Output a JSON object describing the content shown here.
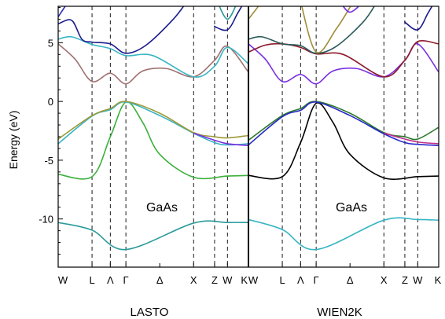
{
  "chart_data": {
    "type": "line",
    "ylabel": "Energy (eV)",
    "ylim": [
      -14.1,
      8.1
    ],
    "yticks": [
      5,
      0,
      -5,
      -10
    ],
    "kpoints": [
      "W",
      "L",
      "Λ",
      "Γ",
      "Δ",
      "X",
      "Z",
      "W",
      "K"
    ],
    "colors": {
      "black": "#000000",
      "teal": "#2a9a9a",
      "cyan": "#38b4c4",
      "green": "#3bb03b",
      "olive": "#9c9a38",
      "purple": "#7a2ee0",
      "mauve": "#a07070",
      "navy": "#1a1a8c",
      "blue": "#2828c8",
      "darkgreen": "#2a7a2a",
      "maroon": "#8c1a2a",
      "darkslate": "#2a5a5a",
      "gold": "#a08c3a",
      "magenta": "#c0308c"
    },
    "panels": [
      {
        "title": "LASTO",
        "material": "GaAs",
        "x_range": [
          0,
          8
        ],
        "dividers": [
          1.0,
          1.54,
          2.0,
          4.0,
          4.62,
          5.0
        ],
        "tick_positions": [
          0,
          1.0,
          1.54,
          2.0,
          3.0,
          4.0,
          4.62,
          5.0,
          5.62
        ],
        "series": [
          {
            "color": "teal",
            "points": [
              [
                0,
                -10.3
              ],
              [
                1.0,
                -10.95
              ],
              [
                2.0,
                -12.6
              ],
              [
                4.0,
                -10.35
              ],
              [
                5.0,
                -10.3
              ],
              [
                5.62,
                -10.3
              ]
            ]
          },
          {
            "color": "green",
            "points": [
              [
                0,
                -6.2
              ],
              [
                1.0,
                -6.4
              ],
              [
                1.54,
                -3.0
              ],
              [
                2.0,
                -0.05
              ],
              [
                2.5,
                -1.8
              ],
              [
                3.0,
                -4.5
              ],
              [
                4.0,
                -6.45
              ],
              [
                5.0,
                -6.35
              ],
              [
                5.62,
                -6.3
              ]
            ]
          },
          {
            "color": "cyan",
            "points": [
              [
                0,
                -3.6
              ],
              [
                1.0,
                -1.25
              ],
              [
                1.54,
                -0.7
              ],
              [
                2.0,
                -0.05
              ],
              [
                3.0,
                -1.2
              ],
              [
                4.0,
                -2.7
              ],
              [
                4.62,
                -3.5
              ],
              [
                5.0,
                -3.7
              ],
              [
                5.62,
                -3.6
              ]
            ]
          },
          {
            "color": "olive",
            "points": [
              [
                0,
                -3.2
              ],
              [
                1.0,
                -1.2
              ],
              [
                1.54,
                -0.6
              ],
              [
                2.0,
                0.0
              ],
              [
                3.0,
                -1.0
              ],
              [
                4.0,
                -2.65
              ],
              [
                4.62,
                -3.0
              ],
              [
                5.0,
                -3.1
              ],
              [
                5.62,
                -2.9
              ]
            ]
          },
          {
            "color": "purple",
            "points": [
              [
                4.0,
                -2.7
              ],
              [
                4.62,
                -3.3
              ],
              [
                5.0,
                -3.6
              ],
              [
                5.62,
                -3.75
              ]
            ]
          },
          {
            "color": "mauve",
            "points": [
              [
                0,
                4.9
              ],
              [
                0.5,
                3.6
              ],
              [
                1.0,
                1.7
              ],
              [
                1.54,
                2.4
              ],
              [
                2.0,
                1.5
              ],
              [
                2.5,
                2.6
              ],
              [
                3.2,
                2.8
              ],
              [
                4.0,
                2.1
              ],
              [
                4.62,
                3.5
              ],
              [
                5.0,
                4.7
              ],
              [
                5.62,
                2.5
              ]
            ]
          },
          {
            "color": "cyan",
            "points": [
              [
                0,
                5.3
              ],
              [
                0.4,
                5.5
              ],
              [
                1.0,
                4.85
              ],
              [
                1.54,
                4.5
              ],
              [
                2.0,
                3.9
              ],
              [
                2.8,
                3.9
              ],
              [
                4.0,
                2.1
              ],
              [
                4.62,
                3.0
              ],
              [
                5.0,
                4.6
              ],
              [
                5.62,
                3.2
              ]
            ]
          },
          {
            "color": "navy",
            "points": [
              [
                0,
                6.6
              ],
              [
                0.4,
                6.9
              ],
              [
                0.7,
                5.3
              ],
              [
                1.0,
                5.05
              ],
              [
                1.54,
                4.9
              ],
              [
                2.0,
                4.1
              ],
              [
                2.6,
                4.8
              ],
              [
                3.4,
                7.0
              ],
              [
                3.8,
                8.5
              ]
            ]
          },
          {
            "color": "blue",
            "points": [
              [
                0,
                7.2
              ],
              [
                0.3,
                8.5
              ]
            ]
          },
          {
            "color": "navy",
            "points": [
              [
                4.6,
                6.4
              ],
              [
                5.0,
                6.1
              ],
              [
                5.3,
                7.5
              ],
              [
                5.5,
                8.5
              ]
            ]
          },
          {
            "color": "teal",
            "points": [
              [
                4.7,
                8.5
              ],
              [
                5.0,
                7.0
              ],
              [
                5.3,
                8.5
              ]
            ]
          }
        ]
      },
      {
        "title": "WIEN2K",
        "material": "GaAs",
        "x_range": [
          0,
          8
        ],
        "dividers": [
          1.0,
          1.54,
          2.0,
          4.0,
          4.62,
          5.0
        ],
        "tick_positions": [
          0,
          1.0,
          1.54,
          2.0,
          3.0,
          4.0,
          4.62,
          5.0,
          5.62
        ],
        "series": [
          {
            "color": "cyan",
            "points": [
              [
                0,
                -10.05
              ],
              [
                1.0,
                -10.9
              ],
              [
                2.0,
                -12.6
              ],
              [
                4.0,
                -10.1
              ],
              [
                5.0,
                -10.05
              ],
              [
                5.62,
                -10.1
              ]
            ]
          },
          {
            "color": "black",
            "points": [
              [
                0,
                -6.3
              ],
              [
                1.0,
                -6.4
              ],
              [
                1.54,
                -3.5
              ],
              [
                2.0,
                -0.15
              ],
              [
                2.5,
                -1.8
              ],
              [
                3.0,
                -4.5
              ],
              [
                4.0,
                -6.5
              ],
              [
                5.0,
                -6.4
              ],
              [
                5.62,
                -6.35
              ]
            ]
          },
          {
            "color": "darkgreen",
            "points": [
              [
                0,
                -3.3
              ],
              [
                1.0,
                -1.2
              ],
              [
                1.54,
                -0.6
              ],
              [
                2.0,
                0.0
              ],
              [
                3.0,
                -1.0
              ],
              [
                4.0,
                -2.65
              ],
              [
                4.62,
                -3.0
              ],
              [
                5.0,
                -3.2
              ],
              [
                5.62,
                -2.2
              ]
            ]
          },
          {
            "color": "blue",
            "points": [
              [
                0,
                -3.7
              ],
              [
                1.0,
                -1.3
              ],
              [
                1.54,
                -0.75
              ],
              [
                2.0,
                -0.05
              ],
              [
                3.0,
                -1.2
              ],
              [
                4.0,
                -2.75
              ],
              [
                4.62,
                -3.5
              ],
              [
                5.0,
                -3.65
              ],
              [
                5.62,
                -3.75
              ]
            ]
          },
          {
            "color": "magenta",
            "points": [
              [
                4.0,
                -2.7
              ],
              [
                4.62,
                -3.2
              ],
              [
                5.0,
                -3.45
              ],
              [
                5.62,
                -3.6
              ]
            ]
          },
          {
            "color": "purple",
            "points": [
              [
                0,
                4.9
              ],
              [
                0.5,
                3.6
              ],
              [
                1.0,
                1.7
              ],
              [
                1.54,
                2.3
              ],
              [
                2.0,
                1.5
              ],
              [
                2.5,
                2.6
              ],
              [
                3.2,
                2.8
              ],
              [
                4.0,
                2.1
              ],
              [
                4.62,
                3.5
              ],
              [
                5.0,
                4.9
              ],
              [
                5.62,
                2.5
              ]
            ]
          },
          {
            "color": "maroon",
            "points": [
              [
                0,
                4.2
              ],
              [
                0.5,
                4.8
              ],
              [
                1.0,
                4.9
              ],
              [
                1.54,
                4.6
              ],
              [
                2.0,
                4.05
              ],
              [
                2.8,
                4.0
              ],
              [
                4.0,
                2.1
              ],
              [
                4.62,
                3.5
              ],
              [
                5.0,
                5.1
              ],
              [
                5.62,
                4.9
              ]
            ]
          },
          {
            "color": "darkslate",
            "points": [
              [
                0,
                5.3
              ],
              [
                0.4,
                5.5
              ],
              [
                1.0,
                4.9
              ],
              [
                1.54,
                4.75
              ],
              [
                2.0,
                4.1
              ],
              [
                2.6,
                4.7
              ],
              [
                3.4,
                6.8
              ],
              [
                3.8,
                8.5
              ]
            ]
          },
          {
            "color": "gold",
            "points": [
              [
                0,
                7.0
              ],
              [
                0.4,
                8.5
              ]
            ]
          },
          {
            "color": "gold",
            "points": [
              [
                1.54,
                8.5
              ],
              [
                2.0,
                4.2
              ],
              [
                2.6,
                6.2
              ],
              [
                3.1,
                8.5
              ]
            ]
          },
          {
            "color": "navy",
            "points": [
              [
                4.6,
                6.8
              ],
              [
                5.0,
                6.1
              ],
              [
                5.3,
                7.5
              ],
              [
                5.5,
                8.5
              ]
            ]
          },
          {
            "color": "purple",
            "points": [
              [
                2.7,
                8.5
              ],
              [
                3.0,
                7.6
              ],
              [
                3.4,
                8.5
              ]
            ]
          }
        ]
      }
    ]
  }
}
